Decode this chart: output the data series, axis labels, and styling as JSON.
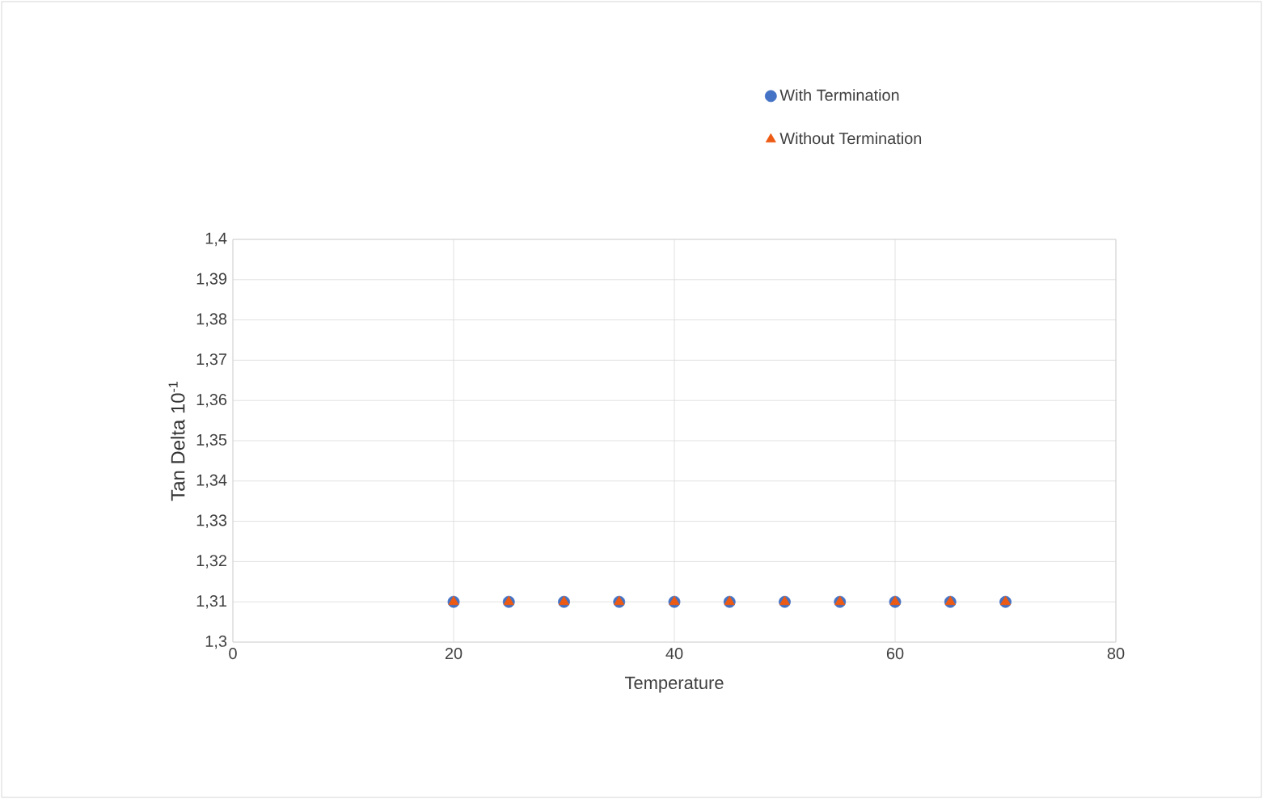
{
  "chart_data": {
    "type": "scatter",
    "xlabel": "Temperature",
    "ylabel": "Tan Delta 10$^{-1}$",
    "x": [
      20,
      25,
      30,
      35,
      40,
      45,
      50,
      55,
      60,
      65,
      70
    ],
    "series": [
      {
        "name": "With Termination",
        "color": "#4472c4",
        "marker": "circle",
        "values": [
          1.31,
          1.31,
          1.31,
          1.31,
          1.31,
          1.31,
          1.31,
          1.31,
          1.31,
          1.31,
          1.31
        ]
      },
      {
        "name": "Without Termination",
        "color": "#ed5a13",
        "marker": "triangle",
        "values": [
          1.31,
          1.31,
          1.31,
          1.31,
          1.31,
          1.31,
          1.31,
          1.31,
          1.31,
          1.31,
          1.31
        ]
      }
    ],
    "xlim": [
      0,
      80
    ],
    "xticks": [
      0,
      20,
      40,
      60,
      80
    ],
    "ylim": [
      1.3,
      1.4
    ],
    "yticks": [
      {
        "value": 1.3,
        "label": "1,3"
      },
      {
        "value": 1.31,
        "label": "1,31"
      },
      {
        "value": 1.32,
        "label": "1,32"
      },
      {
        "value": 1.33,
        "label": "1,33"
      },
      {
        "value": 1.34,
        "label": "1,34"
      },
      {
        "value": 1.35,
        "label": "1,35"
      },
      {
        "value": 1.36,
        "label": "1,36"
      },
      {
        "value": 1.37,
        "label": "1,37"
      },
      {
        "value": 1.38,
        "label": "1,38"
      },
      {
        "value": 1.39,
        "label": "1,39"
      },
      {
        "value": 1.4,
        "label": "1,4"
      }
    ],
    "grid": true,
    "legend": "top right"
  }
}
